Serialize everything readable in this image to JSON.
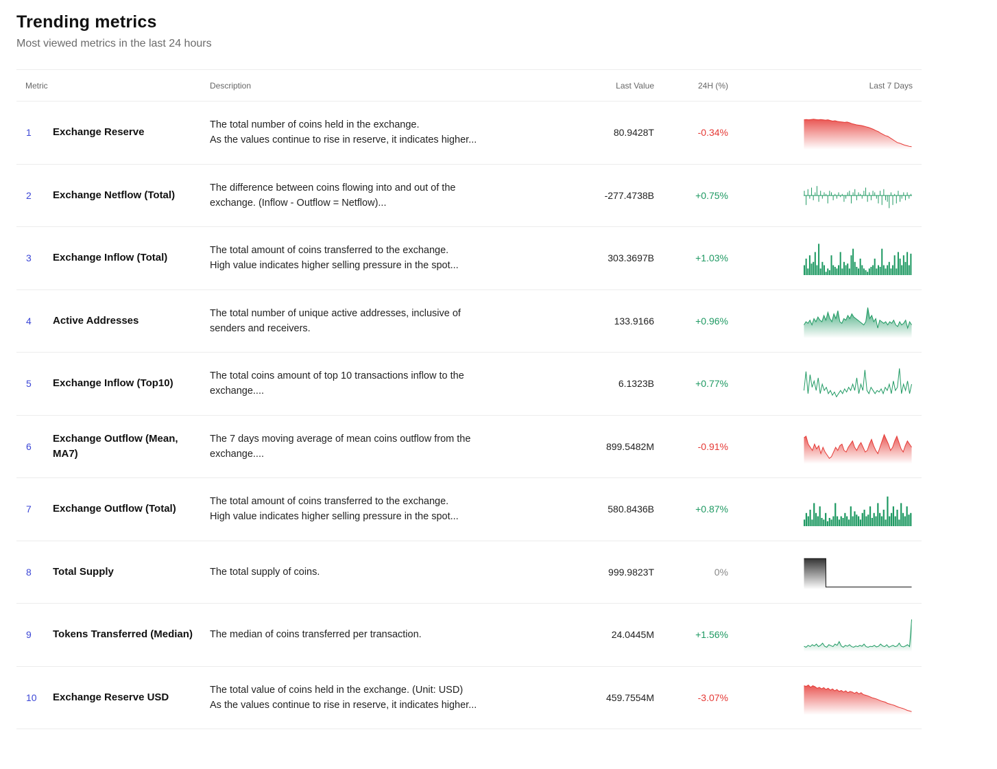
{
  "header": {
    "title": "Trending metrics",
    "subtitle": "Most viewed metrics in the last 24 hours"
  },
  "columns": {
    "metric": "Metric",
    "description": "Description",
    "last_value": "Last Value",
    "change_24h": "24H (%)",
    "last_7_days": "Last 7 Days"
  },
  "colors": {
    "rank": "#3b46d6",
    "up": "#1e9962",
    "down": "#e53935",
    "neutral": "#888888",
    "border": "#ececec"
  },
  "rows": [
    {
      "rank": "1",
      "name": "Exchange Reserve",
      "desc1": "The total number of coins held in the exchange.",
      "desc2": "As the values continue to rise in reserve, it indicates higher...",
      "last_value": "80.9428T",
      "change": "-0.34%",
      "trend": "down",
      "spark_type": "area",
      "spark": [
        0.92,
        0.93,
        0.92,
        0.93,
        0.94,
        0.93,
        0.92,
        0.93,
        0.92,
        0.91,
        0.92,
        0.9,
        0.88,
        0.89,
        0.87,
        0.86,
        0.85,
        0.84,
        0.85,
        0.83,
        0.8,
        0.78,
        0.76,
        0.75,
        0.74,
        0.72,
        0.7,
        0.68,
        0.65,
        0.62,
        0.58,
        0.55,
        0.5,
        0.46,
        0.42,
        0.4,
        0.35,
        0.3,
        0.25,
        0.2,
        0.18,
        0.15,
        0.12,
        0.1,
        0.08,
        0.07
      ]
    },
    {
      "rank": "2",
      "name": "Exchange Netflow (Total)",
      "desc1": "The difference between coins flowing into and out of the",
      "desc2": "exchange. (Inflow - Outflow = Netflow)...",
      "last_value": "-277.4738B",
      "change": "+0.75%",
      "trend": "up",
      "spark_type": "bars-mid",
      "spark": [
        0.3,
        -0.6,
        0.4,
        -0.2,
        0.5,
        -0.3,
        0.2,
        0.6,
        -0.4,
        0.3,
        -0.2,
        0.2,
        0.1,
        -0.5,
        0.3,
        0.2,
        -0.3,
        0.1,
        -0.2,
        0.2,
        -0.1,
        0.1,
        -0.4,
        -0.2,
        0.2,
        0.3,
        -0.5,
        0.2,
        0.4,
        -0.3,
        0.2,
        0.1,
        -0.2,
        0.3,
        0.5,
        -0.4,
        0.2,
        -0.3,
        0.3,
        0.2,
        -0.2,
        -0.5,
        0.3,
        -0.6,
        0.4,
        -0.3,
        -0.4,
        -0.8,
        0.2,
        -0.6,
        0.1,
        -0.5,
        0.3,
        -0.4,
        -0.2,
        0.2,
        -0.3,
        0.2,
        -0.2,
        0.1
      ]
    },
    {
      "rank": "3",
      "name": "Exchange Inflow (Total)",
      "desc1": "The total amount of coins transferred to the exchange.",
      "desc2": "High value indicates higher selling pressure in the spot...",
      "last_value": "303.3697B",
      "change": "+1.03%",
      "trend": "up",
      "spark_type": "bars",
      "spark": [
        0.3,
        0.5,
        0.2,
        0.6,
        0.35,
        0.4,
        0.7,
        0.3,
        0.95,
        0.2,
        0.4,
        0.3,
        0.1,
        0.2,
        0.15,
        0.6,
        0.3,
        0.25,
        0.2,
        0.3,
        0.7,
        0.2,
        0.4,
        0.3,
        0.35,
        0.2,
        0.6,
        0.8,
        0.4,
        0.25,
        0.2,
        0.5,
        0.3,
        0.2,
        0.15,
        0.1,
        0.2,
        0.25,
        0.3,
        0.5,
        0.2,
        0.3,
        0.25,
        0.8,
        0.3,
        0.2,
        0.3,
        0.4,
        0.2,
        0.3,
        0.6,
        0.2,
        0.7,
        0.5,
        0.3,
        0.6,
        0.4,
        0.7,
        0.3,
        0.65
      ]
    },
    {
      "rank": "4",
      "name": "Active Addresses",
      "desc1": "The total number of unique active addresses, inclusive of",
      "desc2": "senders and receivers.",
      "last_value": "133.9166",
      "change": "+0.96%",
      "trend": "up",
      "spark_type": "area",
      "spark": [
        0.4,
        0.5,
        0.45,
        0.55,
        0.4,
        0.6,
        0.5,
        0.65,
        0.55,
        0.5,
        0.7,
        0.55,
        0.8,
        0.6,
        0.5,
        0.75,
        0.6,
        0.85,
        0.5,
        0.45,
        0.6,
        0.55,
        0.7,
        0.6,
        0.75,
        0.65,
        0.6,
        0.55,
        0.5,
        0.45,
        0.4,
        0.5,
        0.95,
        0.6,
        0.7,
        0.5,
        0.6,
        0.3,
        0.55,
        0.5,
        0.45,
        0.5,
        0.4,
        0.5,
        0.45,
        0.55,
        0.4,
        0.35,
        0.5,
        0.4,
        0.45,
        0.55,
        0.3,
        0.5,
        0.4
      ]
    },
    {
      "rank": "5",
      "name": "Exchange Inflow (Top10)",
      "desc1": "The total coins amount of top 10 transactions inflow to the",
      "desc2": "exchange....",
      "last_value": "6.1323B",
      "change": "+0.77%",
      "trend": "up",
      "spark_type": "line",
      "spark": [
        0.3,
        0.9,
        0.2,
        0.8,
        0.4,
        0.6,
        0.3,
        0.7,
        0.2,
        0.5,
        0.3,
        0.4,
        0.2,
        0.3,
        0.15,
        0.25,
        0.1,
        0.2,
        0.3,
        0.2,
        0.35,
        0.25,
        0.4,
        0.3,
        0.5,
        0.3,
        0.7,
        0.2,
        0.5,
        0.3,
        0.95,
        0.3,
        0.2,
        0.4,
        0.3,
        0.2,
        0.3,
        0.25,
        0.35,
        0.2,
        0.4,
        0.3,
        0.5,
        0.2,
        0.6,
        0.3,
        0.4,
        1.0,
        0.2,
        0.5,
        0.3,
        0.6,
        0.2,
        0.5
      ]
    },
    {
      "rank": "6",
      "name": "Exchange Outflow (Mean, MA7)",
      "desc1": "The 7 days moving average of mean coins outflow from the",
      "desc2": "exchange....",
      "last_value": "899.5482M",
      "change": "-0.91%",
      "trend": "down",
      "spark_type": "area",
      "spark": [
        0.8,
        0.85,
        0.6,
        0.5,
        0.4,
        0.6,
        0.45,
        0.55,
        0.3,
        0.5,
        0.35,
        0.25,
        0.15,
        0.2,
        0.35,
        0.5,
        0.4,
        0.55,
        0.6,
        0.4,
        0.35,
        0.5,
        0.6,
        0.7,
        0.5,
        0.4,
        0.55,
        0.65,
        0.5,
        0.35,
        0.4,
        0.6,
        0.75,
        0.55,
        0.4,
        0.3,
        0.5,
        0.7,
        0.9,
        0.75,
        0.6,
        0.4,
        0.5,
        0.7,
        0.85,
        0.65,
        0.45,
        0.35,
        0.55,
        0.7,
        0.6,
        0.5
      ]
    },
    {
      "rank": "7",
      "name": "Exchange Outflow (Total)",
      "desc1": "The total amount of coins transferred to the exchange.",
      "desc2": "High value indicates higher selling pressure in the spot...",
      "last_value": "580.8436B",
      "change": "+0.87%",
      "trend": "up",
      "spark_type": "bars",
      "spark": [
        0.2,
        0.4,
        0.3,
        0.5,
        0.2,
        0.7,
        0.4,
        0.3,
        0.6,
        0.25,
        0.2,
        0.4,
        0.15,
        0.25,
        0.2,
        0.3,
        0.7,
        0.3,
        0.2,
        0.3,
        0.25,
        0.4,
        0.3,
        0.2,
        0.6,
        0.3,
        0.45,
        0.35,
        0.3,
        0.2,
        0.4,
        0.5,
        0.3,
        0.35,
        0.6,
        0.25,
        0.4,
        0.3,
        0.7,
        0.4,
        0.3,
        0.5,
        0.2,
        0.9,
        0.3,
        0.4,
        0.6,
        0.3,
        0.5,
        0.2,
        0.7,
        0.4,
        0.3,
        0.6,
        0.35,
        0.4
      ]
    },
    {
      "rank": "8",
      "name": "Total Supply",
      "desc1": "The total supply of coins.",
      "desc2": "",
      "last_value": "999.9823T",
      "change": "0%",
      "trend": "neutral",
      "spark_type": "step",
      "spark": [
        0.95,
        0.95,
        0.95,
        0.95,
        0.95,
        0.95,
        0.95,
        0.95,
        0.95,
        0.95,
        0.95,
        0.95,
        0.05,
        0.05,
        0.05,
        0.05,
        0.05,
        0.05,
        0.05,
        0.05,
        0.05,
        0.05,
        0.05,
        0.05,
        0.05,
        0.05,
        0.05,
        0.05,
        0.05,
        0.05,
        0.05,
        0.05,
        0.05,
        0.05,
        0.05,
        0.05,
        0.05,
        0.05,
        0.05,
        0.05,
        0.05,
        0.05,
        0.05,
        0.05,
        0.05,
        0.05,
        0.05,
        0.05,
        0.05,
        0.05,
        0.05,
        0.05,
        0.05,
        0.05,
        0.05,
        0.05,
        0.05,
        0.05,
        0.05,
        0.05
      ]
    },
    {
      "rank": "9",
      "name": "Tokens Transferred (Median)",
      "desc1": "The median of coins transferred per transaction.",
      "desc2": "",
      "last_value": "24.0445M",
      "change": "+1.56%",
      "trend": "up",
      "spark_type": "area",
      "spark": [
        0.15,
        0.12,
        0.18,
        0.14,
        0.2,
        0.16,
        0.22,
        0.14,
        0.18,
        0.25,
        0.15,
        0.12,
        0.2,
        0.17,
        0.14,
        0.22,
        0.18,
        0.3,
        0.16,
        0.12,
        0.18,
        0.15,
        0.2,
        0.14,
        0.12,
        0.16,
        0.14,
        0.18,
        0.15,
        0.22,
        0.14,
        0.12,
        0.15,
        0.14,
        0.18,
        0.13,
        0.15,
        0.22,
        0.16,
        0.14,
        0.2,
        0.12,
        0.15,
        0.18,
        0.14,
        0.16,
        0.25,
        0.15,
        0.13,
        0.16,
        0.2,
        0.14,
        1.0
      ]
    },
    {
      "rank": "10",
      "name": "Exchange Reserve USD",
      "desc1": "The total value of coins held in the exchange. (Unit: USD)",
      "desc2": "As the values continue to rise in reserve, it indicates higher...",
      "last_value": "459.7554M",
      "change": "-3.07%",
      "trend": "down",
      "spark_type": "area",
      "spark": [
        0.9,
        0.88,
        0.92,
        0.85,
        0.9,
        0.87,
        0.82,
        0.85,
        0.8,
        0.84,
        0.78,
        0.82,
        0.76,
        0.8,
        0.74,
        0.78,
        0.72,
        0.75,
        0.7,
        0.74,
        0.68,
        0.72,
        0.7,
        0.66,
        0.7,
        0.64,
        0.68,
        0.62,
        0.6,
        0.58,
        0.55,
        0.52,
        0.5,
        0.48,
        0.45,
        0.42,
        0.4,
        0.38,
        0.34,
        0.32,
        0.3,
        0.28,
        0.25,
        0.22,
        0.2,
        0.18,
        0.15,
        0.12,
        0.1,
        0.08
      ]
    }
  ]
}
